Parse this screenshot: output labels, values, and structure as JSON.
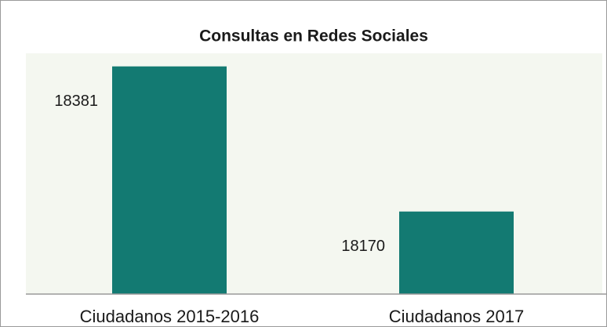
{
  "chart_data": {
    "type": "bar",
    "title": "Consultas en Redes Sociales",
    "categories": [
      "Ciudadanos 2015-2016",
      "Ciudadanos 2017"
    ],
    "values": [
      18381,
      18170
    ],
    "color": "#137a72",
    "ylim": [
      18050,
      18400
    ]
  }
}
